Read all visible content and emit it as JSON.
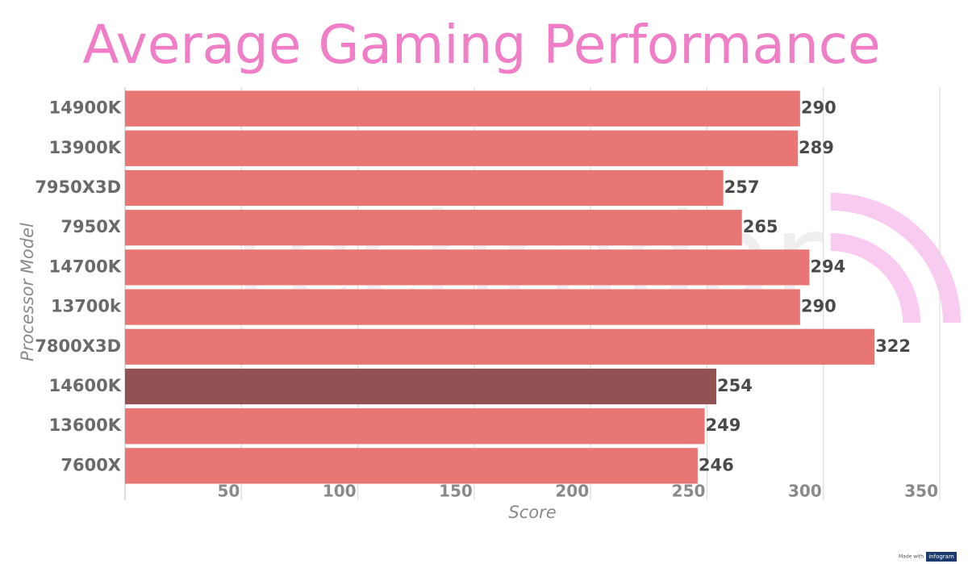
{
  "chart_data": {
    "type": "bar",
    "orientation": "horizontal",
    "title": "Average Gaming Performance",
    "x_label": "Score",
    "y_label": "Processor Model",
    "categories": [
      "14900K",
      "13900K",
      "7950X3D",
      "7950X",
      "14700K",
      "13700k",
      "7800X3D",
      "14600K",
      "13600K",
      "7600X"
    ],
    "values": [
      290,
      289,
      257,
      265,
      294,
      290,
      322,
      254,
      249,
      246
    ],
    "colors": [
      "#e87674",
      "#e87674",
      "#e87674",
      "#e87674",
      "#e87674",
      "#e87674",
      "#e87674",
      "#925152",
      "#e87674",
      "#e87674"
    ],
    "xlim": [
      0,
      350
    ],
    "xticks": [
      50,
      100,
      150,
      200,
      250,
      300,
      350
    ],
    "grid": true,
    "watermark": "techradar",
    "credit": [
      "Made with",
      "infogram"
    ]
  }
}
